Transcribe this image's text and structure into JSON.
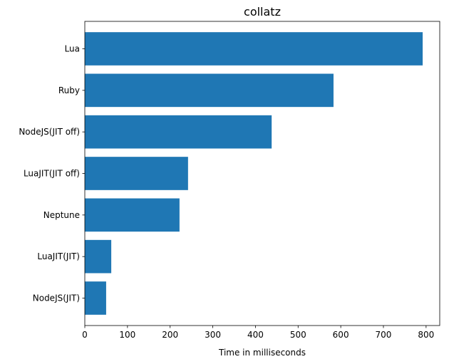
{
  "chart_data": {
    "type": "bar",
    "orientation": "horizontal",
    "title": "collatz",
    "xlabel": "Time in milliseconds",
    "ylabel": "",
    "categories": [
      "NodeJS(JIT)",
      "LuaJIT(JIT)",
      "Neptune",
      "LuaJIT(JIT off)",
      "NodeJS(JIT off)",
      "Ruby",
      "Lua"
    ],
    "values": [
      50,
      62,
      222,
      242,
      438,
      583,
      792
    ],
    "xlim": [
      0,
      832
    ],
    "xticks": [
      0,
      100,
      200,
      300,
      400,
      500,
      600,
      700,
      800
    ],
    "bar_color": "#1f77b4",
    "grid": false,
    "legend": "none"
  }
}
